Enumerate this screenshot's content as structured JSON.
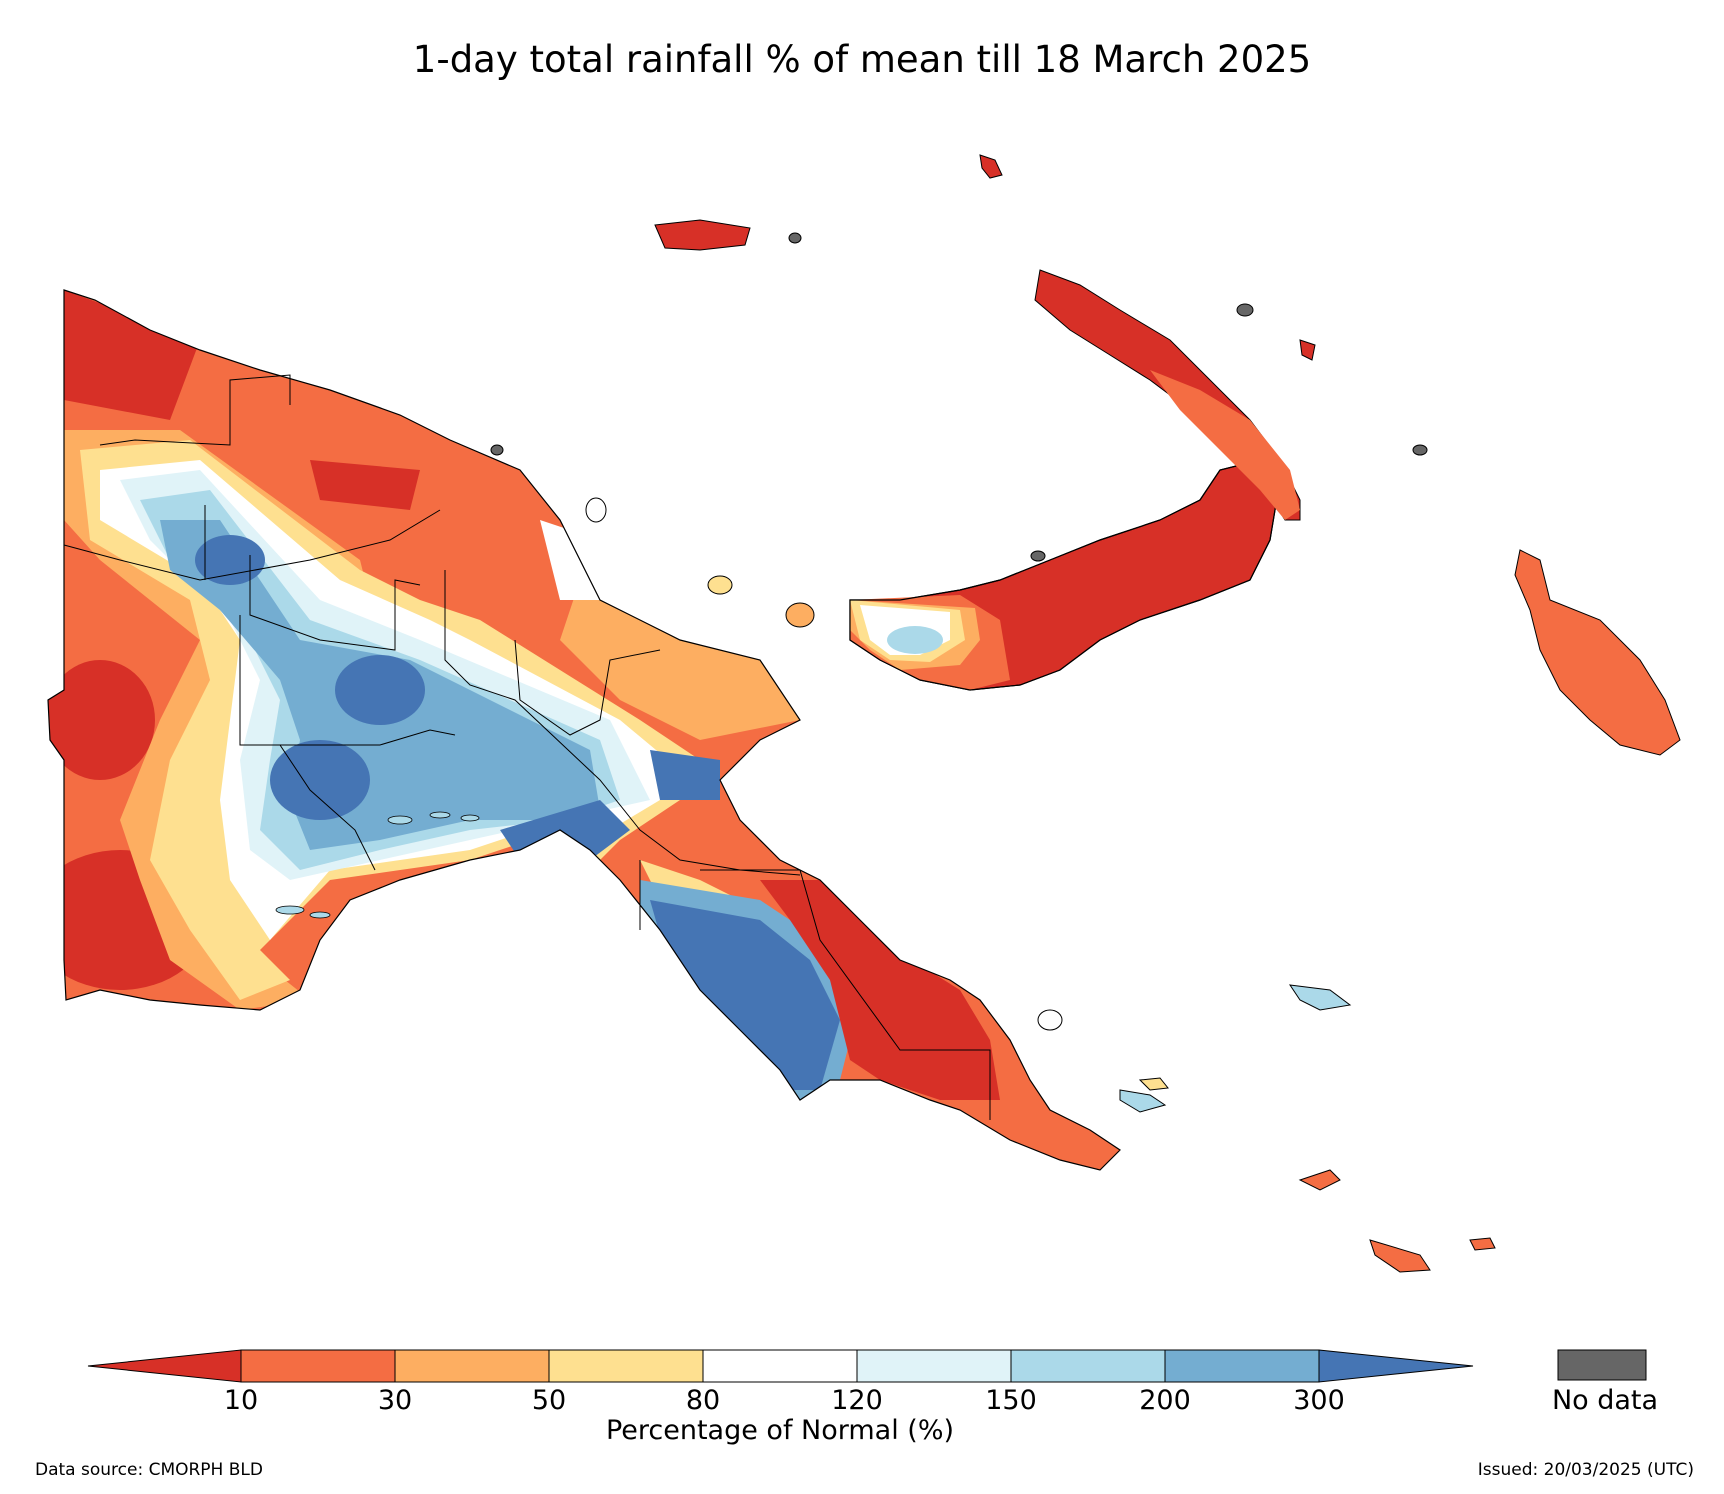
{
  "title": "1-day total rainfall % of mean till 18 March 2025",
  "colorbar": {
    "label": "Percentage of Normal (%)",
    "ticks": [
      "10",
      "30",
      "50",
      "80",
      "120",
      "150",
      "200",
      "300"
    ],
    "colors": [
      "#d73027",
      "#f46d43",
      "#fdae61",
      "#fee090",
      "#ffffff",
      "#e0f3f8",
      "#abd9e9",
      "#74add1",
      "#4575b4"
    ],
    "no_data_label": "No data",
    "no_data_color": "#666666"
  },
  "footer": {
    "source": "Data source: CMORPH BLD",
    "issued": "Issued: 20/03/2025 (UTC)"
  }
}
